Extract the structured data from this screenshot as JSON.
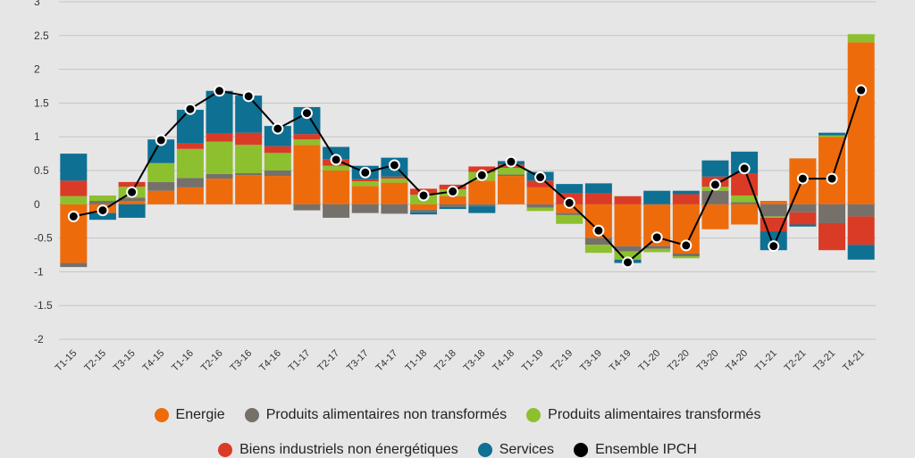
{
  "chart_data": {
    "type": "bar",
    "stacked": true,
    "categories": [
      "T1-15",
      "T2-15",
      "T3-15",
      "T4-15",
      "T1-16",
      "T2-16",
      "T3-16",
      "T4-16",
      "T1-17",
      "T2-17",
      "T3-17",
      "T4-17",
      "T1-18",
      "T2-18",
      "T3-18",
      "T4-18",
      "T1-19",
      "T2-19",
      "T3-19",
      "T4-19",
      "T1-20",
      "T2-20",
      "T3-20",
      "T4-20",
      "T1-21",
      "T2-21",
      "T3-21",
      "T4-21"
    ],
    "series": [
      {
        "name": "Energie",
        "color": "#ee6b0c",
        "values": [
          -0.87,
          -0.13,
          0.05,
          0.2,
          0.25,
          0.38,
          0.43,
          0.42,
          0.88,
          0.5,
          0.27,
          0.32,
          -0.08,
          0.12,
          0.35,
          0.42,
          0.25,
          -0.13,
          -0.5,
          -0.62,
          -0.62,
          -0.73,
          -0.37,
          -0.3,
          0.05,
          0.68,
          1.0,
          2.4
        ]
      },
      {
        "name": "Produits alimentaires non transformés",
        "color": "#76706a",
        "values": [
          -0.06,
          0.05,
          0.05,
          0.13,
          0.14,
          0.07,
          0.03,
          0.08,
          -0.09,
          -0.2,
          -0.13,
          -0.14,
          -0.04,
          -0.04,
          -0.03,
          0.02,
          -0.05,
          -0.03,
          -0.1,
          -0.08,
          -0.04,
          -0.04,
          0.2,
          0.03,
          -0.18,
          -0.12,
          -0.28,
          -0.18
        ]
      },
      {
        "name": "Produits alimentaires transformés",
        "color": "#8dc02e",
        "values": [
          0.12,
          0.08,
          0.16,
          0.28,
          0.43,
          0.48,
          0.42,
          0.26,
          0.08,
          0.07,
          0.07,
          0.06,
          0.14,
          0.1,
          0.13,
          0.1,
          -0.05,
          -0.13,
          -0.12,
          -0.12,
          -0.05,
          -0.03,
          0.06,
          0.1,
          -0.02,
          0.0,
          0.02,
          0.12
        ]
      },
      {
        "name": "Biens industriels non énergétiques",
        "color": "#da3b26",
        "values": [
          0.23,
          0.0,
          0.07,
          0.0,
          0.08,
          0.12,
          0.18,
          0.1,
          0.08,
          0.1,
          0.03,
          0.03,
          0.09,
          0.07,
          0.08,
          0.05,
          0.1,
          0.16,
          0.16,
          0.12,
          0.0,
          0.15,
          0.15,
          0.33,
          -0.2,
          -0.18,
          -0.4,
          -0.42
        ]
      },
      {
        "name": "Services",
        "color": "#0e7093",
        "values": [
          0.4,
          -0.1,
          -0.2,
          0.35,
          0.5,
          0.63,
          0.55,
          0.3,
          0.4,
          0.18,
          0.2,
          0.28,
          -0.03,
          -0.03,
          -0.1,
          0.05,
          0.13,
          0.14,
          0.15,
          -0.05,
          0.2,
          0.05,
          0.24,
          0.32,
          -0.28,
          -0.03,
          0.04,
          -0.22
        ]
      }
    ],
    "line": {
      "name": "Ensemble IPCH",
      "color": "#000000",
      "values": [
        -0.18,
        -0.09,
        0.18,
        0.95,
        1.41,
        1.68,
        1.6,
        1.12,
        1.35,
        0.66,
        0.47,
        0.58,
        0.13,
        0.19,
        0.43,
        0.63,
        0.4,
        0.02,
        -0.39,
        -0.86,
        -0.49,
        -0.61,
        0.29,
        0.53,
        -0.62,
        0.38,
        0.38,
        1.69
      ]
    },
    "ylim": [
      -2,
      3
    ],
    "yticks": [
      "-2",
      "-1.5",
      "-1",
      "-0.5",
      "0",
      "0.5",
      "1",
      "1.5",
      "2",
      "2.5",
      "3"
    ],
    "grid": true,
    "legend_position": "bottom"
  },
  "legend": {
    "row1": [
      {
        "label": "Energie",
        "color": "#ee6b0c"
      },
      {
        "label": "Produits alimentaires non transformés",
        "color": "#76706a"
      },
      {
        "label": "Produits alimentaires transformés",
        "color": "#8dc02e"
      }
    ],
    "row2": [
      {
        "label": "Biens industriels non énergétiques",
        "color": "#da3b26"
      },
      {
        "label": "Services",
        "color": "#0e7093"
      },
      {
        "label": "Ensemble IPCH",
        "color": "#000000"
      }
    ]
  }
}
